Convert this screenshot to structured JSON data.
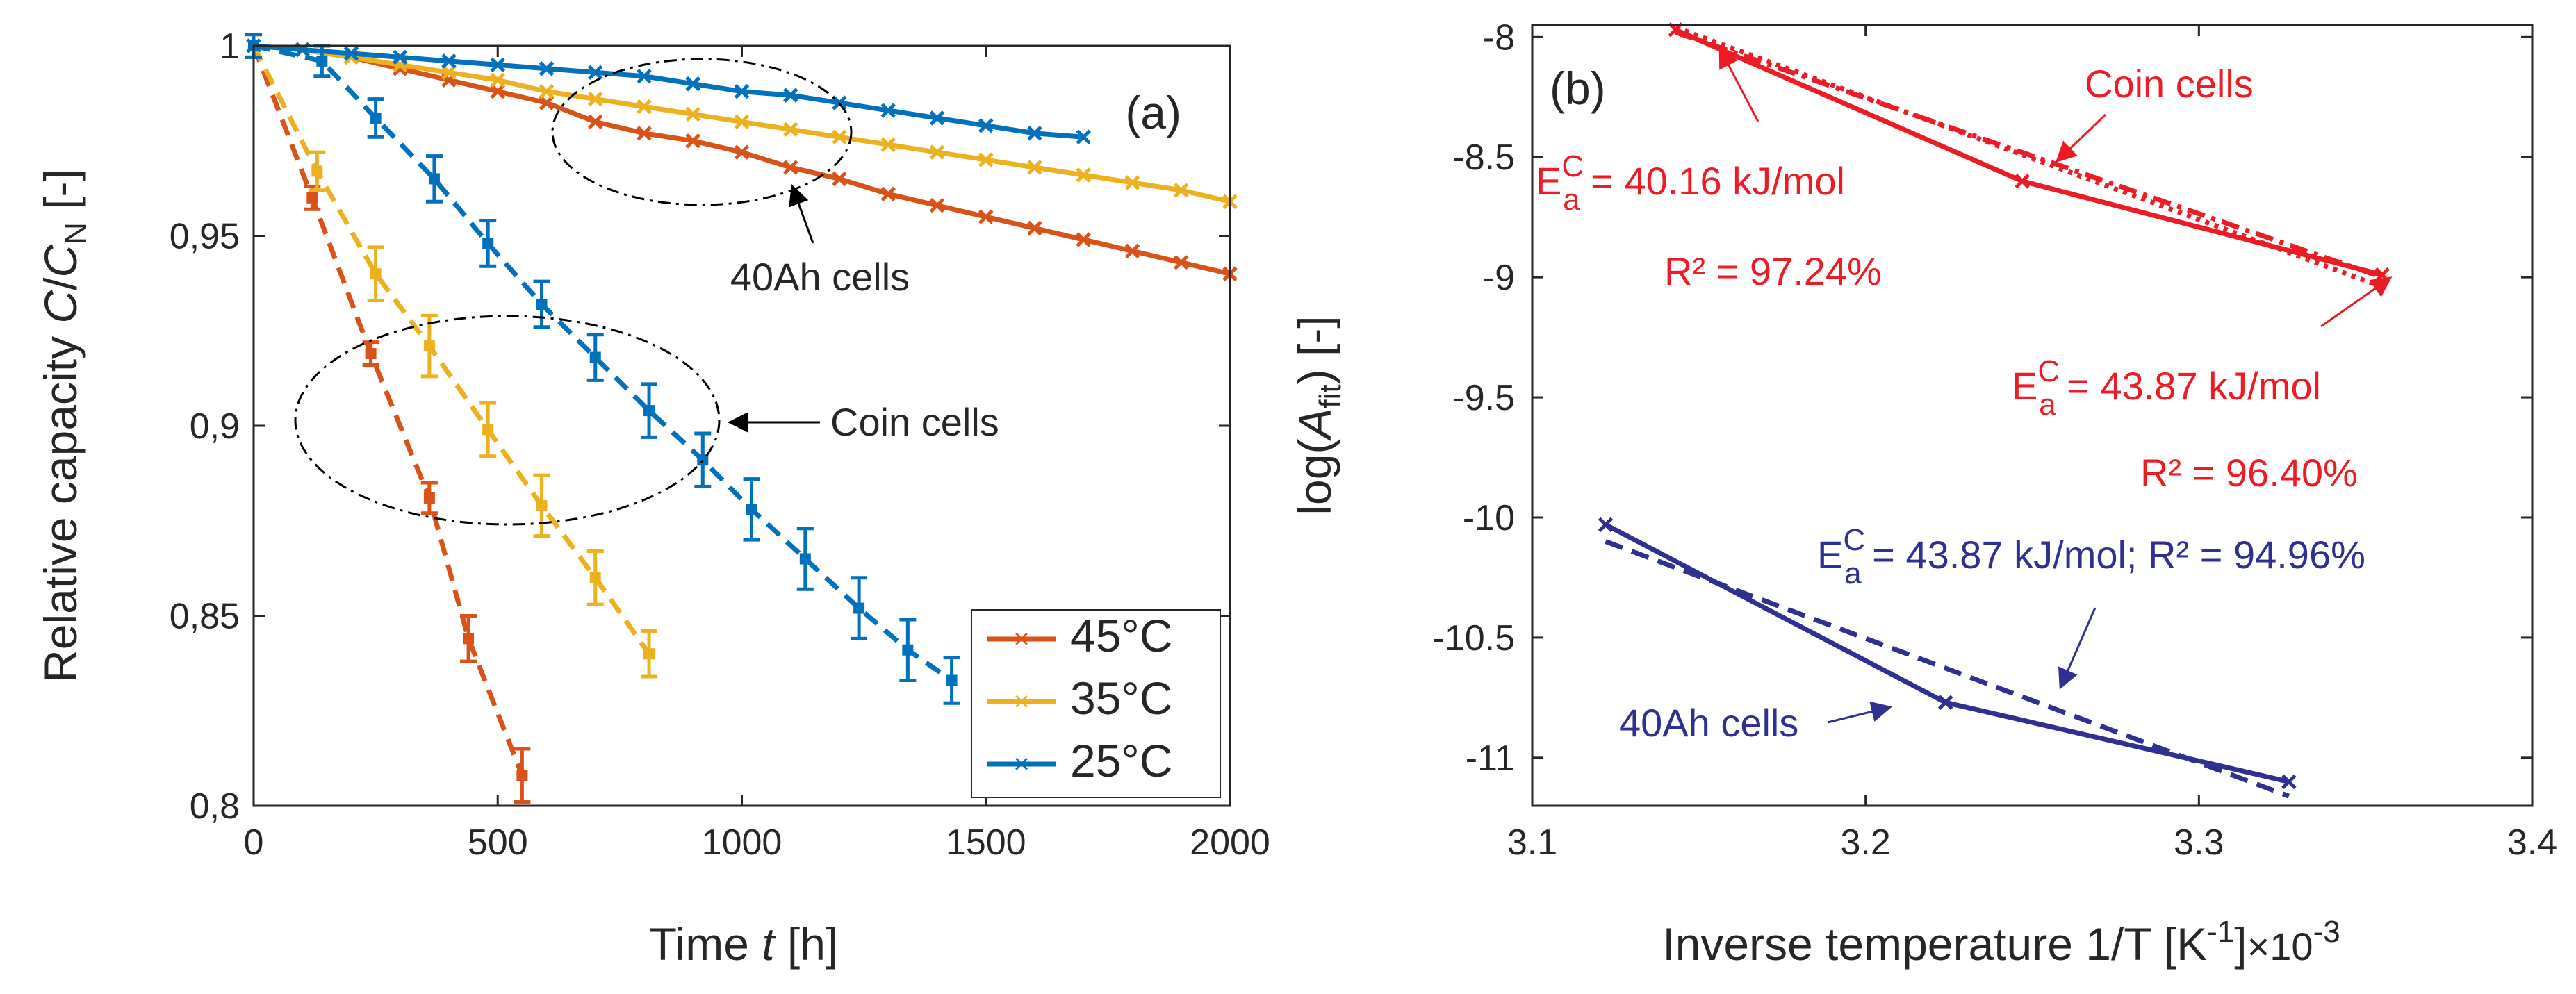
{
  "chart_data": [
    {
      "type": "line",
      "panel_label": "(a)",
      "xlabel_prefix": "Time ",
      "xlabel_var": "t",
      "xlabel_unit": " [h]",
      "ylabel_prefix": "Relative capacity ",
      "ylabel_c": "C",
      "ylabel_slash": "/",
      "ylabel_cn": "C",
      "ylabel_n": "N",
      "ylabel_unit": " [-]",
      "xlim": [
        0,
        2000
      ],
      "ylim": [
        0.8,
        1.0
      ],
      "xticks": [
        0,
        500,
        1000,
        1500,
        2000
      ],
      "xtick_labels": [
        "0",
        "500",
        "1000",
        "1500",
        "2000"
      ],
      "yticks": [
        0.8,
        0.85,
        0.9,
        0.95,
        1.0
      ],
      "ytick_labels": [
        "0,8",
        "0,85",
        "0,9",
        "0,95",
        "1"
      ],
      "legend": [
        "45°C",
        "35°C",
        "25°C"
      ],
      "legend_position": "bottom-right",
      "colors": {
        "45": "#d95319",
        "35": "#edb120",
        "25": "#0072bd"
      },
      "series": [
        {
          "name": "45°C",
          "key": "45",
          "style": "solid-x",
          "x": [
            0,
            100,
            200,
            300,
            400,
            500,
            600,
            700,
            800,
            900,
            1000,
            1100,
            1200,
            1300,
            1400,
            1500,
            1600,
            1700,
            1800,
            1900,
            2000
          ],
          "y": [
            1.0,
            0.999,
            0.997,
            0.994,
            0.991,
            0.988,
            0.985,
            0.98,
            0.977,
            0.975,
            0.972,
            0.968,
            0.965,
            0.961,
            0.958,
            0.955,
            0.952,
            0.949,
            0.946,
            0.943,
            0.94
          ]
        },
        {
          "name": "35°C",
          "key": "35",
          "style": "solid-x",
          "x": [
            0,
            100,
            200,
            300,
            400,
            500,
            600,
            700,
            800,
            900,
            1000,
            1100,
            1200,
            1300,
            1400,
            1500,
            1600,
            1700,
            1800,
            1900,
            2000
          ],
          "y": [
            1.0,
            0.999,
            0.997,
            0.995,
            0.993,
            0.991,
            0.988,
            0.986,
            0.984,
            0.982,
            0.98,
            0.978,
            0.976,
            0.974,
            0.972,
            0.97,
            0.968,
            0.966,
            0.964,
            0.962,
            0.959
          ]
        },
        {
          "name": "25°C",
          "key": "25",
          "style": "solid-x",
          "x": [
            0,
            100,
            200,
            300,
            400,
            500,
            600,
            700,
            800,
            900,
            1000,
            1100,
            1200,
            1300,
            1400,
            1500,
            1600,
            1700
          ],
          "y": [
            1.0,
            0.999,
            0.998,
            0.997,
            0.996,
            0.995,
            0.994,
            0.993,
            0.992,
            0.99,
            0.988,
            0.987,
            0.985,
            0.983,
            0.981,
            0.979,
            0.977,
            0.976
          ]
        },
        {
          "name": "45°C coin",
          "key": "45",
          "style": "dashed-err",
          "x": [
            0,
            120,
            240,
            360,
            440,
            550
          ],
          "y": [
            1.0,
            0.96,
            0.919,
            0.881,
            0.844,
            0.808
          ],
          "err": [
            0.003,
            0.003,
            0.003,
            0.004,
            0.006,
            0.007
          ]
        },
        {
          "name": "35°C coin",
          "key": "35",
          "style": "dashed-err",
          "x": [
            0,
            130,
            250,
            360,
            480,
            590,
            700,
            810
          ],
          "y": [
            1.0,
            0.967,
            0.94,
            0.921,
            0.899,
            0.879,
            0.86,
            0.84
          ],
          "err": [
            0.003,
            0.005,
            0.007,
            0.008,
            0.007,
            0.008,
            0.007,
            0.006
          ]
        },
        {
          "name": "25°C coin",
          "key": "25",
          "style": "dashed-err",
          "x": [
            0,
            140,
            250,
            370,
            480,
            590,
            700,
            810,
            920,
            1020,
            1130,
            1240,
            1340,
            1430
          ],
          "y": [
            1.0,
            0.996,
            0.981,
            0.965,
            0.948,
            0.932,
            0.918,
            0.904,
            0.891,
            0.878,
            0.865,
            0.852,
            0.841,
            0.833
          ],
          "err": [
            0.003,
            0.004,
            0.005,
            0.006,
            0.006,
            0.006,
            0.006,
            0.007,
            0.007,
            0.008,
            0.008,
            0.008,
            0.008,
            0.006
          ]
        }
      ],
      "annotations": {
        "cells40": "40Ah cells",
        "coin": "Coin cells"
      }
    },
    {
      "type": "line",
      "panel_label": "(b)",
      "xlabel_prefix": "Inverse temperature 1/T [K",
      "xlabel_exp": "-1",
      "xlabel_suffix": "]",
      "xlabel_mult": "×10",
      "xlabel_mult_exp": "-3",
      "ylabel_prefix": "log(",
      "ylabel_var": "A",
      "ylabel_sub": "fit",
      "ylabel_suffix": ") [-]",
      "xlim": [
        3.1,
        3.4
      ],
      "ylim": [
        -11.2,
        -7.95
      ],
      "xticks": [
        3.1,
        3.2,
        3.3,
        3.4
      ],
      "xtick_labels": [
        "3.1",
        "3.2",
        "3.3",
        "3.4"
      ],
      "yticks": [
        -8,
        -8.5,
        -9,
        -9.5,
        -10,
        -10.5,
        -11
      ],
      "ytick_labels": [
        "-8",
        "-8.5",
        "-9",
        "-9.5",
        "-10",
        "-10.5",
        "-11"
      ],
      "colors": {
        "red": "#ed1c24",
        "blue": "#2e3192"
      },
      "series": [
        {
          "name": "Coin cells data",
          "key": "red",
          "style": "solid-x",
          "x": [
            3.143,
            3.247,
            3.355
          ],
          "y": [
            -7.97,
            -8.6,
            -8.99
          ]
        },
        {
          "name": "Coin fit 1",
          "key": "red",
          "style": "dashdot",
          "x": [
            3.143,
            3.355
          ],
          "y": [
            -7.98,
            -9.0
          ]
        },
        {
          "name": "Coin fit 2",
          "key": "red",
          "style": "dotted",
          "x": [
            3.143,
            3.355
          ],
          "y": [
            -7.96,
            -9.04
          ]
        },
        {
          "name": "40Ah data",
          "key": "blue",
          "style": "solid-x",
          "x": [
            3.122,
            3.224,
            3.327
          ],
          "y": [
            -10.03,
            -10.77,
            -11.1
          ]
        },
        {
          "name": "40Ah fit",
          "key": "blue",
          "style": "dashed",
          "x": [
            3.122,
            3.327
          ],
          "y": [
            -10.1,
            -11.16
          ]
        }
      ],
      "annotations": {
        "coin": "Coin cells",
        "ea_prefix": "E",
        "ea_sup": "C",
        "ea_sub": "a",
        "ea1_value": " = 40.16 kJ/mol",
        "r1": "R² = 97.24%",
        "ea2_value": " = 43.87 kJ/mol",
        "r2": "R² = 96.40%",
        "ea3_value": " = 43.87 kJ/mol; R² = 94.96%",
        "cells40": "40Ah cells"
      }
    }
  ]
}
